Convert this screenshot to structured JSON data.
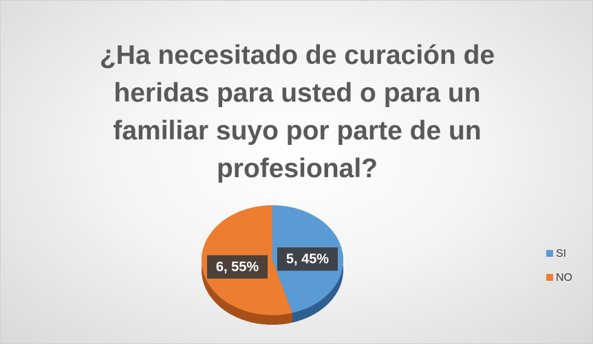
{
  "chart_data": {
    "type": "pie",
    "title": "¿Ha necesitado de curación de heridas para usted o para un familiar suyo por parte de un profesional?",
    "categories": [
      "SI",
      "NO"
    ],
    "values": [
      5,
      6
    ],
    "value_labels": [
      "5, 45%",
      "6, 55%"
    ],
    "colors": [
      "#5b9bd5",
      "#ed7d31"
    ],
    "side_colors": [
      "#2f5f8f",
      "#a8501a"
    ],
    "legend": "right"
  }
}
